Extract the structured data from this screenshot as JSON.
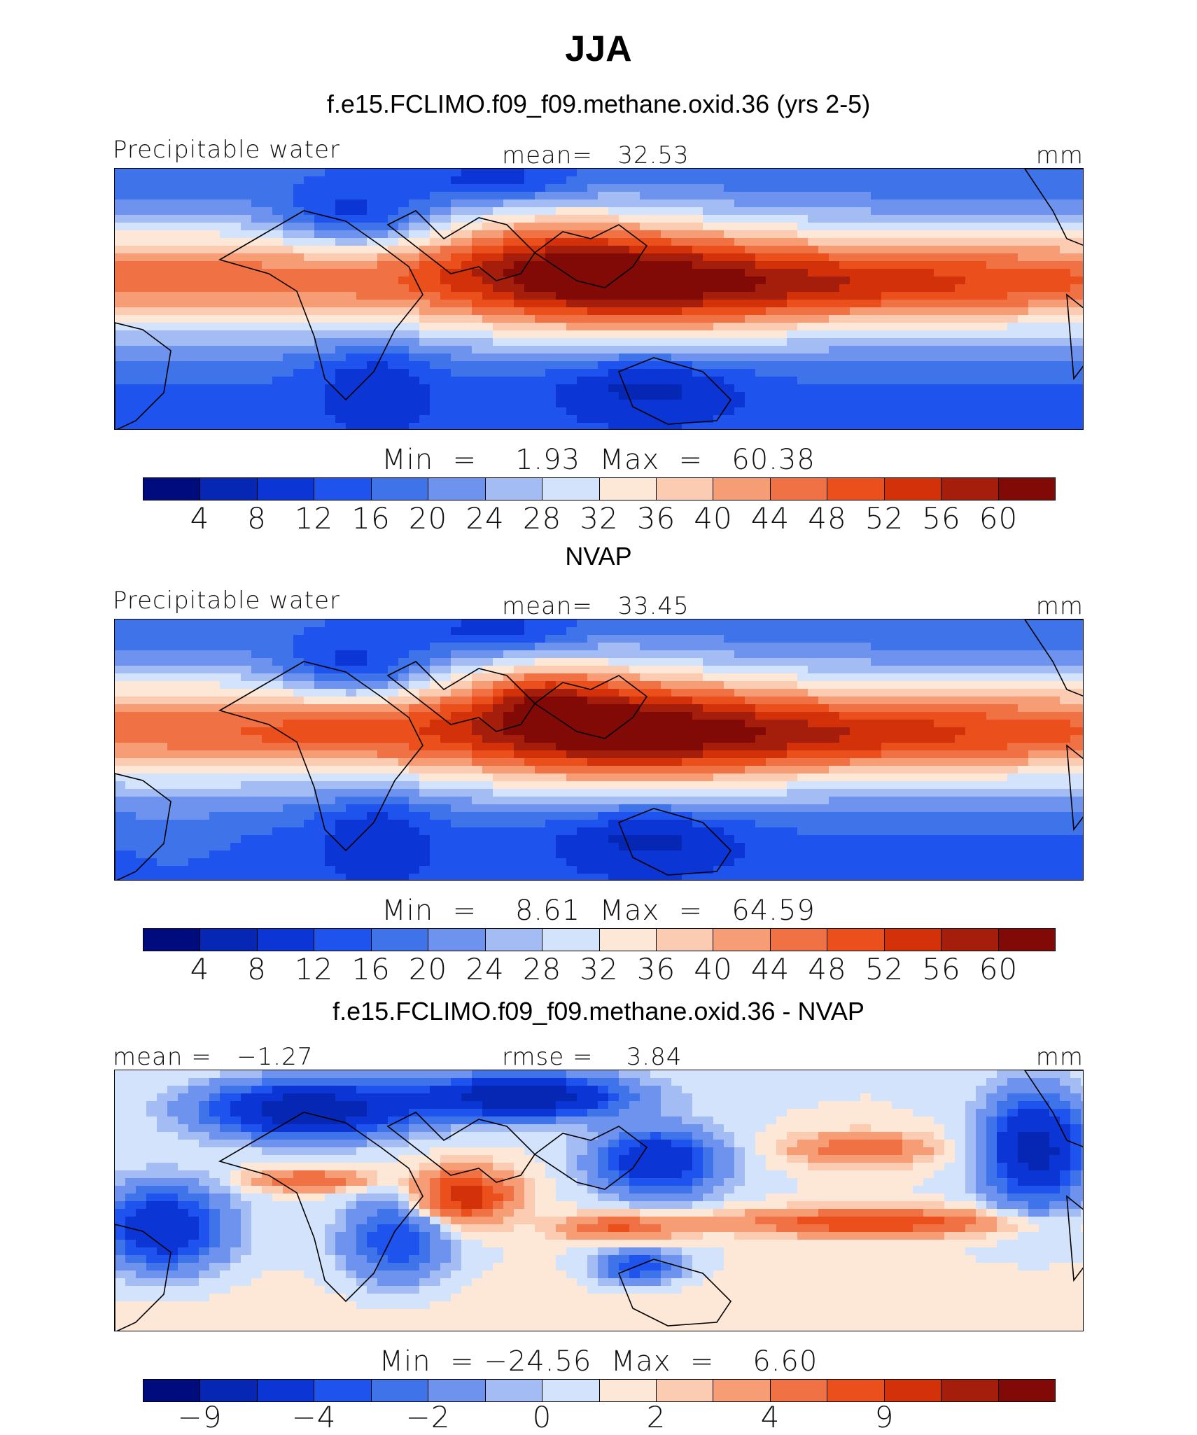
{
  "season": "JJA",
  "colors": {
    "precip_scale": [
      "#000c7d",
      "#0626b4",
      "#0b35d5",
      "#1f53ee",
      "#3e73ea",
      "#6e93ee",
      "#a3bdf4",
      "#d2e3fb",
      "#fde8d8",
      "#fbcbb2",
      "#f79d76",
      "#f07143",
      "#eb4f1c",
      "#d23109",
      "#a51d0b",
      "#810a06"
    ],
    "diff_scale": [
      "#000c7d",
      "#0626b4",
      "#0b35d5",
      "#1f53ee",
      "#3e73ea",
      "#6e93ee",
      "#a3bdf4",
      "#d2e3fb",
      "#fde8d8",
      "#fbcbb2",
      "#f79d76",
      "#f07143",
      "#eb4f1c",
      "#d23109",
      "#a51d0b",
      "#810a06"
    ]
  },
  "panels": [
    {
      "title": "f.e15.FCLIMO.f09_f09.methane.oxid.36 (yrs 2-5)",
      "left_label": "Precipitable water",
      "mid_label": "mean=   32.53",
      "units": "mm",
      "minmax": "Min  =    1.93  Max  =   60.38",
      "ticks": [
        "4",
        "8",
        "12",
        "16",
        "20",
        "24",
        "28",
        "32",
        "36",
        "40",
        "44",
        "48",
        "52",
        "56",
        "60"
      ],
      "field": "model"
    },
    {
      "title": "NVAP",
      "left_label": "Precipitable water",
      "mid_label": "mean=   33.45",
      "units": "mm",
      "minmax": "Min  =    8.61  Max  =   64.59",
      "ticks": [
        "4",
        "8",
        "12",
        "16",
        "20",
        "24",
        "28",
        "32",
        "36",
        "40",
        "44",
        "48",
        "52",
        "56",
        "60"
      ],
      "field": "obs"
    },
    {
      "title": "f.e15.FCLIMO.f09_f09.methane.oxid.36 - NVAP",
      "left_label": "mean =   −1.27",
      "mid_label": "rmse =    3.84",
      "units": "mm",
      "minmax": "Min  = −24.56  Max  =    6.60",
      "ticks": [
        "−9",
        "",
        "−4",
        "",
        "−2",
        "",
        "0",
        "",
        "2",
        "",
        "4",
        "",
        "9",
        "",
        ""
      ],
      "field": "diff"
    }
  ]
}
